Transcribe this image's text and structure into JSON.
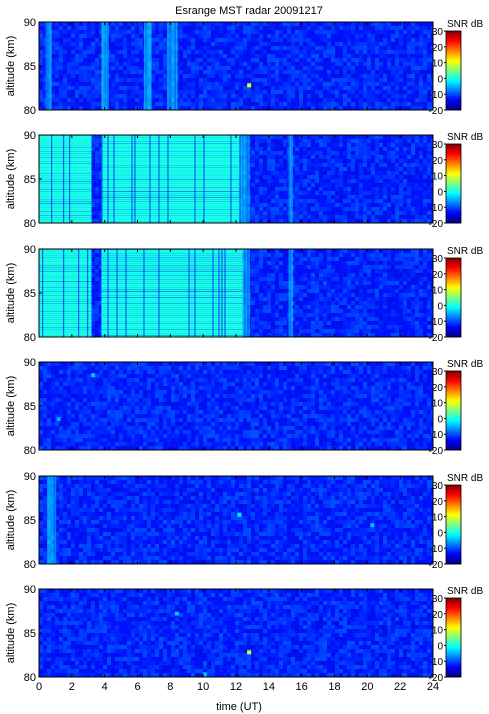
{
  "chart_data": {
    "type": "heatmap",
    "title": "Esrange MST radar 20091217",
    "xlabel": "time (UT)",
    "x_ticks": [
      0,
      2,
      4,
      6,
      8,
      10,
      12,
      14,
      16,
      18,
      20,
      22,
      24
    ],
    "xlim": [
      0,
      24
    ],
    "colorbar": {
      "label": "SNR dB",
      "ticks": [
        30,
        20,
        10,
        0,
        -10,
        -20
      ],
      "range": [
        -20,
        30
      ]
    },
    "panels": [
      {
        "ylabel": "altitude (km)",
        "y_ticks": [
          80,
          85,
          90
        ],
        "ylim": [
          80,
          90
        ],
        "background_snr": -12,
        "strong_bands": [],
        "medium_bands": [
          [
            0.4,
            0.7
          ],
          [
            3.8,
            4.2
          ],
          [
            6.4,
            6.8
          ],
          [
            7.8,
            8.4
          ]
        ],
        "speckles": [
          [
            12.8,
            82.8,
            10
          ]
        ]
      },
      {
        "ylabel": "altitude (km)",
        "y_ticks": [
          80,
          85,
          90
        ],
        "ylim": [
          80,
          90
        ],
        "background_snr": -12,
        "strong_bands": [
          [
            0,
            3.2
          ],
          [
            3.8,
            12.2
          ]
        ],
        "medium_bands": [
          [
            12.2,
            12.8
          ],
          [
            15.2,
            15.4
          ]
        ],
        "speckles": []
      },
      {
        "ylabel": "altitude (km)",
        "y_ticks": [
          80,
          85,
          90
        ],
        "ylim": [
          80,
          90
        ],
        "background_snr": -12,
        "strong_bands": [
          [
            0,
            3.2
          ],
          [
            3.8,
            12.4
          ]
        ],
        "medium_bands": [
          [
            12.4,
            12.8
          ],
          [
            15.2,
            15.4
          ]
        ],
        "speckles": []
      },
      {
        "ylabel": "altitude (km)",
        "y_ticks": [
          80,
          85,
          90
        ],
        "ylim": [
          80,
          90
        ],
        "background_snr": -12,
        "strong_bands": [],
        "medium_bands": [],
        "speckles": [
          [
            3.3,
            88.5,
            -4
          ],
          [
            1.2,
            83.5,
            -5
          ]
        ]
      },
      {
        "ylabel": "altitude (km)",
        "y_ticks": [
          80,
          85,
          90
        ],
        "ylim": [
          80,
          90
        ],
        "background_snr": -12,
        "strong_bands": [],
        "medium_bands": [
          [
            0.5,
            1.0
          ]
        ],
        "speckles": [
          [
            12.2,
            85.6,
            -2
          ],
          [
            20.3,
            84.4,
            -4
          ]
        ]
      },
      {
        "ylabel": "altitude (km)",
        "y_ticks": [
          80,
          85,
          90
        ],
        "ylim": [
          80,
          90
        ],
        "background_snr": -12,
        "strong_bands": [],
        "medium_bands": [],
        "speckles": [
          [
            12.8,
            82.8,
            8
          ],
          [
            8.4,
            87.2,
            -4
          ],
          [
            10.1,
            80.3,
            -4
          ]
        ]
      }
    ]
  }
}
